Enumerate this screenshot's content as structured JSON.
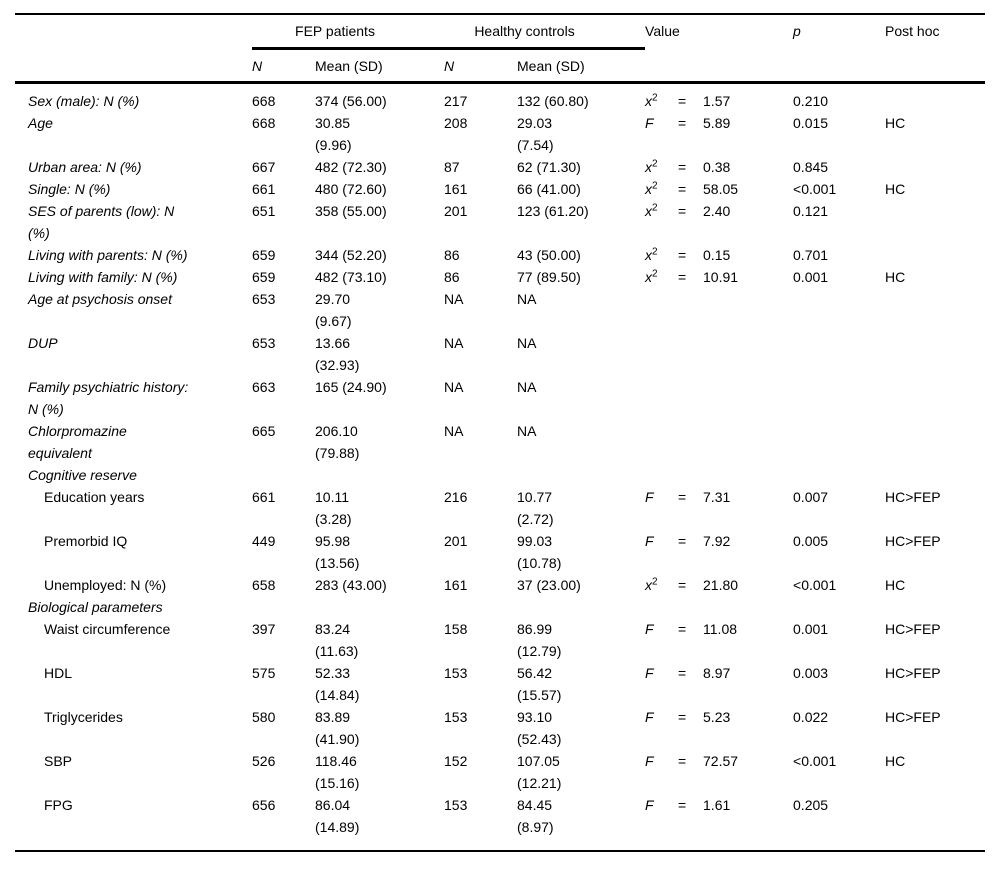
{
  "table": {
    "header": {
      "group_fep": "FEP patients",
      "group_hc": "Healthy controls",
      "col_value": "Value",
      "col_p": "p",
      "col_posthoc": "Post hoc",
      "sub_n_fep": "N",
      "sub_mean_fep": "Mean (SD)",
      "sub_n_hc": "N",
      "sub_mean_hc": "Mean (SD)"
    },
    "rows": [
      {
        "type": "main",
        "label": "Sex (male): N (%)",
        "fep_n": "668",
        "fep_mean": "374 (56.00)",
        "hc_n": "217",
        "hc_mean": "132 (60.80)",
        "stat": "x2",
        "eq": "=",
        "value": "1.57",
        "p": "0.210",
        "posthoc": ""
      },
      {
        "type": "main",
        "label": "Age",
        "fep_n": "668",
        "fep_mean": "30.85\n(9.96)",
        "hc_n": "208",
        "hc_mean": "29.03\n(7.54)",
        "stat": "F",
        "eq": "=",
        "value": "5.89",
        "p": "0.015",
        "posthoc": "HC"
      },
      {
        "type": "main",
        "label": "Urban area: N (%)",
        "fep_n": "667",
        "fep_mean": "482 (72.30)",
        "hc_n": "87",
        "hc_mean": "62 (71.30)",
        "stat": "x2",
        "eq": "=",
        "value": "0.38",
        "p": "0.845",
        "posthoc": ""
      },
      {
        "type": "main",
        "label": "Single: N (%)",
        "fep_n": "661",
        "fep_mean": "480 (72.60)",
        "hc_n": "161",
        "hc_mean": "66 (41.00)",
        "stat": "x2",
        "eq": "=",
        "value": "58.05",
        "p": "<0.001",
        "posthoc": "HC"
      },
      {
        "type": "main",
        "label": "SES of parents (low): N\n(%)",
        "fep_n": "651",
        "fep_mean": "358 (55.00)",
        "hc_n": "201",
        "hc_mean": "123 (61.20)",
        "stat": "x2",
        "eq": "=",
        "value": "2.40",
        "p": "0.121",
        "posthoc": ""
      },
      {
        "type": "main",
        "label": "Living with parents: N (%)",
        "fep_n": "659",
        "fep_mean": "344 (52.20)",
        "hc_n": "86",
        "hc_mean": "43 (50.00)",
        "stat": "x2",
        "eq": "=",
        "value": "0.15",
        "p": "0.701",
        "posthoc": ""
      },
      {
        "type": "main",
        "label": "Living with family: N (%)",
        "fep_n": "659",
        "fep_mean": "482 (73.10)",
        "hc_n": "86",
        "hc_mean": "77 (89.50)",
        "stat": "x2",
        "eq": "=",
        "value": "10.91",
        "p": "0.001",
        "posthoc": "HC"
      },
      {
        "type": "main",
        "label": "Age at psychosis onset",
        "fep_n": "653",
        "fep_mean": "29.70\n(9.67)",
        "hc_n": "NA",
        "hc_mean": "NA",
        "stat": "",
        "eq": "",
        "value": "",
        "p": "",
        "posthoc": ""
      },
      {
        "type": "main",
        "label": "DUP",
        "fep_n": "653",
        "fep_mean": "13.66\n(32.93)",
        "hc_n": "NA",
        "hc_mean": "NA",
        "stat": "",
        "eq": "",
        "value": "",
        "p": "",
        "posthoc": ""
      },
      {
        "type": "main",
        "label": "Family psychiatric history:\nN (%)",
        "fep_n": "663",
        "fep_mean": "165 (24.90)",
        "hc_n": "NA",
        "hc_mean": "NA",
        "stat": "",
        "eq": "",
        "value": "",
        "p": "",
        "posthoc": ""
      },
      {
        "type": "main",
        "label": "Chlorpromazine\nequivalent",
        "fep_n": "665",
        "fep_mean": "206.10\n(79.88)",
        "hc_n": "NA",
        "hc_mean": "NA",
        "stat": "",
        "eq": "",
        "value": "",
        "p": "",
        "posthoc": ""
      },
      {
        "type": "section",
        "label": "Cognitive reserve",
        "fep_n": "",
        "fep_mean": "",
        "hc_n": "",
        "hc_mean": "",
        "stat": "",
        "eq": "",
        "value": "",
        "p": "",
        "posthoc": ""
      },
      {
        "type": "sub",
        "label": "Education years",
        "fep_n": "661",
        "fep_mean": "10.11\n(3.28)",
        "hc_n": "216",
        "hc_mean": "10.77\n(2.72)",
        "stat": "F",
        "eq": "=",
        "value": "7.31",
        "p": "0.007",
        "posthoc": "HC>FEP"
      },
      {
        "type": "sub",
        "label": "Premorbid IQ",
        "fep_n": "449",
        "fep_mean": "95.98\n(13.56)",
        "hc_n": "201",
        "hc_mean": "99.03\n(10.78)",
        "stat": "F",
        "eq": "=",
        "value": "7.92",
        "p": "0.005",
        "posthoc": "HC>FEP"
      },
      {
        "type": "sub",
        "label": "Unemployed: N (%)",
        "fep_n": "658",
        "fep_mean": "283 (43.00)",
        "hc_n": "161",
        "hc_mean": "37 (23.00)",
        "stat": "x2",
        "eq": "=",
        "value": "21.80",
        "p": "<0.001",
        "posthoc": "HC"
      },
      {
        "type": "section",
        "label": "Biological parameters",
        "fep_n": "",
        "fep_mean": "",
        "hc_n": "",
        "hc_mean": "",
        "stat": "",
        "eq": "",
        "value": "",
        "p": "",
        "posthoc": ""
      },
      {
        "type": "sub",
        "label": "Waist circumference",
        "fep_n": "397",
        "fep_mean": "83.24\n(11.63)",
        "hc_n": "158",
        "hc_mean": "86.99\n(12.79)",
        "stat": "F",
        "eq": "=",
        "value": "11.08",
        "p": "0.001",
        "posthoc": "HC>FEP"
      },
      {
        "type": "sub",
        "label": "HDL",
        "fep_n": "575",
        "fep_mean": "52.33\n(14.84)",
        "hc_n": "153",
        "hc_mean": "56.42\n(15.57)",
        "stat": "F",
        "eq": "=",
        "value": "8.97",
        "p": "0.003",
        "posthoc": "HC>FEP"
      },
      {
        "type": "sub",
        "label": "Triglycerides",
        "fep_n": "580",
        "fep_mean": "83.89\n(41.90)",
        "hc_n": "153",
        "hc_mean": "93.10\n(52.43)",
        "stat": "F",
        "eq": "=",
        "value": "5.23",
        "p": "0.022",
        "posthoc": "HC>FEP"
      },
      {
        "type": "sub",
        "label": "SBP",
        "fep_n": "526",
        "fep_mean": "118.46\n(15.16)",
        "hc_n": "152",
        "hc_mean": "107.05\n(12.21)",
        "stat": "F",
        "eq": "=",
        "value": "72.57",
        "p": "<0.001",
        "posthoc": "HC"
      },
      {
        "type": "sub",
        "label": "FPG",
        "fep_n": "656",
        "fep_mean": "86.04\n(14.89)",
        "hc_n": "153",
        "hc_mean": "84.45\n(8.97)",
        "stat": "F",
        "eq": "=",
        "value": "1.61",
        "p": "0.205",
        "posthoc": ""
      }
    ]
  }
}
